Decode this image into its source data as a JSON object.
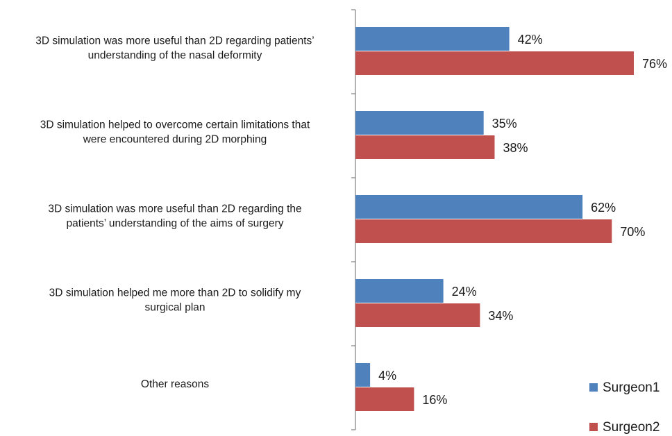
{
  "chart_data": {
    "type": "bar",
    "orientation": "horizontal",
    "categories": [
      [
        "3D simulation was more useful than 2D regarding patients’",
        "understanding of the nasal deformity"
      ],
      [
        "3D simulation helped to overcome certain limitations that",
        "were encountered during 2D morphing"
      ],
      [
        "3D simulation was more useful than 2D regarding the",
        "patients’ understanding of the aims of surgery"
      ],
      [
        "3D simulation helped me more than 2D to solidify my",
        "surgical plan"
      ],
      [
        "Other reasons"
      ]
    ],
    "series": [
      {
        "name": "Surgeon1",
        "color": "#4F81BD",
        "values": [
          42,
          35,
          62,
          24,
          4
        ],
        "labels": [
          "42%",
          "35%",
          "62%",
          "24%",
          "4%"
        ]
      },
      {
        "name": "Surgeon2",
        "color": "#C0504D",
        "values": [
          76,
          38,
          70,
          34,
          16
        ],
        "labels": [
          "76%",
          "38%",
          "70%",
          "34%",
          "16%"
        ]
      }
    ],
    "xlim": [
      0,
      80
    ],
    "value_unit": "%",
    "grid": false,
    "legend": {
      "position": "bottom-right",
      "entries": [
        "Surgeon1",
        "Surgeon2"
      ]
    }
  }
}
